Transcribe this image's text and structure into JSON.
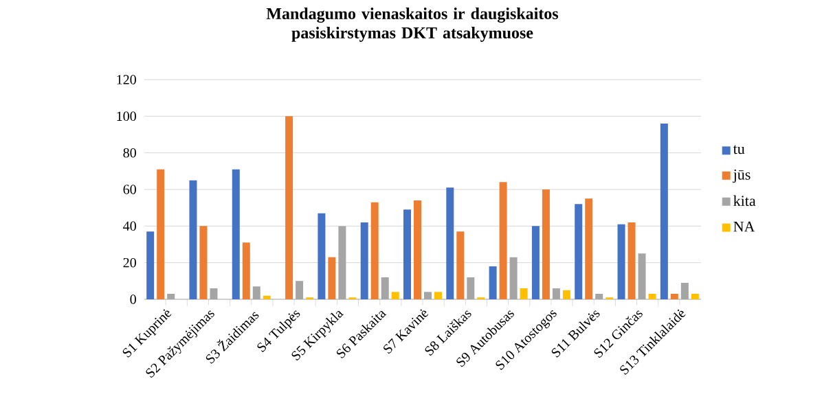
{
  "chart_data": {
    "type": "bar",
    "title": "Mandagumo vienaskaitos ir daugiskaitos pasiskirstymas DKT atsakymuose",
    "categories": [
      "S1 Kuprinė",
      "S2 Pažymėjimas",
      "S3 Žaidimas",
      "S4 Tulpės",
      "S5 Kirpykla",
      "S6 Paskaita",
      "S7 Kavinė",
      "S8 Laiškas",
      "S9 Autobusas",
      "S10 Atostogos",
      "S11 Bulvės",
      "S12 Ginčas",
      "S13 Tinklalaidė"
    ],
    "series": [
      {
        "name": "tu",
        "color": "#4472c4",
        "values": [
          37,
          65,
          71,
          0,
          47,
          42,
          49,
          61,
          18,
          40,
          52,
          41,
          96
        ]
      },
      {
        "name": "jūs",
        "color": "#ed7d31",
        "values": [
          71,
          40,
          31,
          100,
          23,
          53,
          54,
          37,
          64,
          60,
          55,
          42,
          3
        ]
      },
      {
        "name": "kita",
        "color": "#a5a5a5",
        "values": [
          3,
          6,
          7,
          10,
          40,
          12,
          4,
          12,
          23,
          6,
          3,
          25,
          9
        ]
      },
      {
        "name": "NA",
        "color": "#ffc000",
        "values": [
          0,
          0,
          2,
          1,
          1,
          4,
          4,
          1,
          6,
          5,
          1,
          3,
          3
        ]
      }
    ],
    "ylim": [
      0,
      120
    ],
    "yticks": [
      0,
      20,
      40,
      60,
      80,
      100,
      120
    ],
    "grid": "y",
    "legend": "right"
  }
}
